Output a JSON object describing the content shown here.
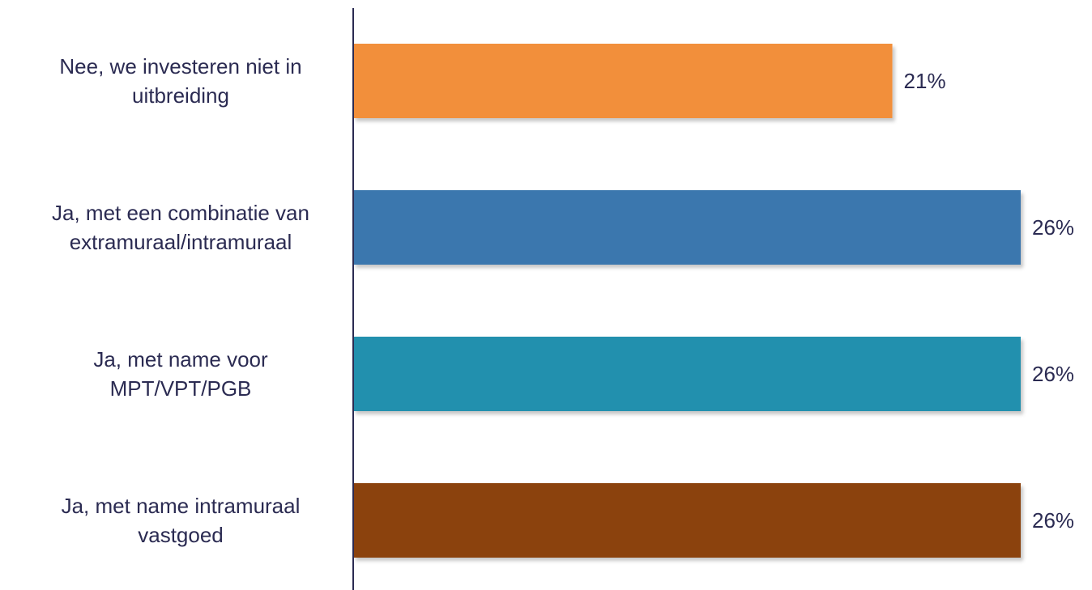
{
  "chart_data": {
    "type": "bar",
    "orientation": "horizontal",
    "title": "",
    "xlabel": "",
    "ylabel": "",
    "xlim": [
      0,
      26
    ],
    "grid": false,
    "legend": "none",
    "categories": [
      [
        "Nee, we investeren niet in",
        "uitbreiding"
      ],
      [
        "Ja, met een combinatie van",
        "extramuraal/intramuraal"
      ],
      [
        "Ja, met name voor",
        "MPT/VPT/PGB"
      ],
      [
        "Ja, met name intramuraal",
        "vastgoed"
      ]
    ],
    "values": [
      21,
      26,
      26,
      26
    ],
    "value_labels": [
      "21%",
      "26%",
      "26%",
      "26%"
    ],
    "colors": [
      "#f28f3b",
      "#3a77ae",
      "#2190ae",
      "#8b4309"
    ],
    "axis_color": "#2b2b52",
    "text_color": "#2b2b52"
  }
}
